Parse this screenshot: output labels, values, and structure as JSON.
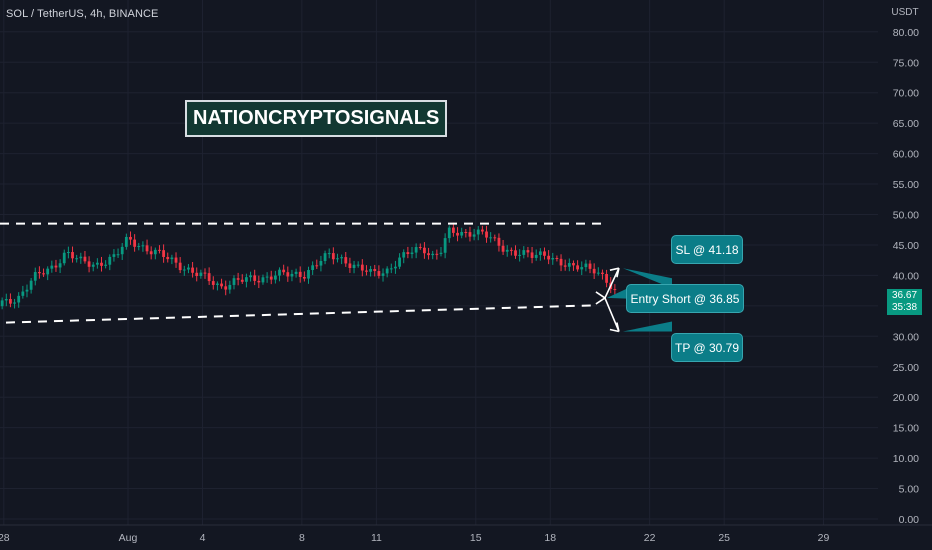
{
  "chart_data": {
    "type": "candlestick",
    "symbol_title": "SOL / TetherUS, 4h, BINANCE",
    "currency": "USDT",
    "y_ticks": [
      "80.00",
      "75.00",
      "70.00",
      "65.00",
      "60.00",
      "55.00",
      "50.00",
      "45.00",
      "40.00",
      "35.00",
      "30.00",
      "25.00",
      "20.00",
      "15.00",
      "10.00",
      "5.00",
      "0.00"
    ],
    "ylim": [
      0,
      80
    ],
    "x_ticks": [
      {
        "label": "28",
        "day": -4
      },
      {
        "label": "Aug",
        "day": 1
      },
      {
        "label": "4",
        "day": 4
      },
      {
        "label": "8",
        "day": 8
      },
      {
        "label": "11",
        "day": 11
      },
      {
        "label": "15",
        "day": 15
      },
      {
        "label": "18",
        "day": 18
      },
      {
        "label": "22",
        "day": 22
      },
      {
        "label": "25",
        "day": 25
      },
      {
        "label": "29",
        "day": 29
      }
    ],
    "price_path": [
      [
        -4.9,
        33.5
      ],
      [
        -4.2,
        35.2
      ],
      [
        -3.4,
        36.5
      ],
      [
        -2.8,
        39.5
      ],
      [
        -2.0,
        41.5
      ],
      [
        -1.5,
        43.8
      ],
      [
        -0.9,
        42.2
      ],
      [
        -0.3,
        41.8
      ],
      [
        0.5,
        43.0
      ],
      [
        1.0,
        46.0
      ],
      [
        1.4,
        45.2
      ],
      [
        1.9,
        44.0
      ],
      [
        2.5,
        43.0
      ],
      [
        3.0,
        42.0
      ],
      [
        3.6,
        40.5
      ],
      [
        4.2,
        39.4
      ],
      [
        4.7,
        38.2
      ],
      [
        5.3,
        39.0
      ],
      [
        5.9,
        39.3
      ],
      [
        6.4,
        39.6
      ],
      [
        7.0,
        40.2
      ],
      [
        7.6,
        40.0
      ],
      [
        8.1,
        40.3
      ],
      [
        8.6,
        42.0
      ],
      [
        9.1,
        43.2
      ],
      [
        9.7,
        42.6
      ],
      [
        10.2,
        41.4
      ],
      [
        10.8,
        40.2
      ],
      [
        11.4,
        40.8
      ],
      [
        11.9,
        42.6
      ],
      [
        12.4,
        43.8
      ],
      [
        12.9,
        44.5
      ],
      [
        13.3,
        43.2
      ],
      [
        13.6,
        44.2
      ],
      [
        13.9,
        47.0
      ],
      [
        14.4,
        46.8
      ],
      [
        14.9,
        47.3
      ],
      [
        15.3,
        47.0
      ],
      [
        15.7,
        45.5
      ],
      [
        16.2,
        44.2
      ],
      [
        16.8,
        43.8
      ],
      [
        17.3,
        43.0
      ],
      [
        17.9,
        43.5
      ],
      [
        18.4,
        42.2
      ],
      [
        18.9,
        41.0
      ],
      [
        19.4,
        41.5
      ],
      [
        19.8,
        41.2
      ],
      [
        20.2,
        39.4
      ],
      [
        20.5,
        37.5
      ],
      [
        20.7,
        36.4
      ]
    ],
    "last_price": "36.67",
    "countdown": "35:38",
    "resistance_level": 48.5,
    "support_line": {
      "from": [
        -5.2,
        32.1
      ],
      "to": [
        19.9,
        35.1
      ]
    },
    "arrow_origin": {
      "day": 20.2,
      "price": 36.3
    },
    "annotations": [
      {
        "label": "SL @ 41.18",
        "price": 41.18
      },
      {
        "label": "Entry Short @ 36.85",
        "price": 36.85
      },
      {
        "label": "TP @ 30.79",
        "price": 30.79
      }
    ],
    "colors": {
      "up": "#089981",
      "down": "#f23645",
      "background": "#131722",
      "grid": "#1e2230",
      "axis_text": "#b2b5be",
      "callout": "#0b7d88"
    }
  },
  "watermark": "NATIONCRYPTOSIGNALS"
}
